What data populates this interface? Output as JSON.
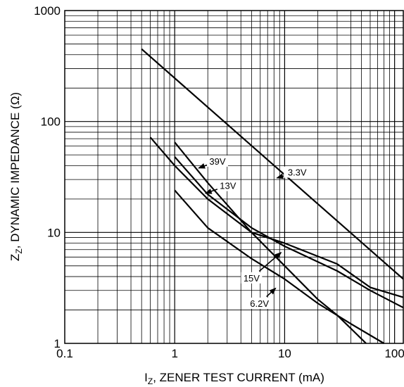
{
  "chart_data": {
    "type": "line",
    "title": "",
    "x_scale": "log",
    "y_scale": "log",
    "xlim": [
      0.1,
      120
    ],
    "ylim": [
      1,
      1000
    ],
    "grid": true,
    "xlabel_main": "I",
    "xlabel_sub": "Z",
    "xlabel_rest": ", ZENER TEST CURRENT (mA)",
    "ylabel_main": "Z",
    "ylabel_sub": "Z",
    "ylabel_rest": ", DYNAMIC IMPEDANCE (Ω)",
    "x_ticks": [
      {
        "value": 0.1,
        "label": "0.1"
      },
      {
        "value": 1,
        "label": "1"
      },
      {
        "value": 10,
        "label": "10"
      },
      {
        "value": 100,
        "label": "100"
      }
    ],
    "y_ticks": [
      {
        "value": 1,
        "label": "1"
      },
      {
        "value": 10,
        "label": "10"
      },
      {
        "value": 100,
        "label": "100"
      },
      {
        "value": 1000,
        "label": "1000"
      }
    ],
    "series": [
      {
        "name": "3.3V",
        "x": [
          0.5,
          120
        ],
        "y": [
          450,
          3.8
        ]
      },
      {
        "name": "39V",
        "x": [
          1,
          2,
          5,
          10,
          20,
          30,
          55
        ],
        "y": [
          65,
          28,
          10,
          5,
          2.5,
          1.8,
          1.0
        ]
      },
      {
        "name": "13V",
        "x": [
          1,
          2,
          5,
          10,
          30,
          60,
          120
        ],
        "y": [
          48,
          22,
          11,
          7.5,
          4.5,
          3.0,
          2.1
        ]
      },
      {
        "name": "15V",
        "x": [
          0.6,
          1,
          2,
          5,
          10,
          30,
          60,
          120
        ],
        "y": [
          72,
          40,
          20,
          10,
          8,
          5.2,
          3.2,
          2.6
        ]
      },
      {
        "name": "6.2V",
        "x": [
          1,
          2,
          5,
          10,
          20,
          40,
          80
        ],
        "y": [
          24,
          11,
          5.8,
          3.8,
          2.3,
          1.5,
          1.0
        ]
      }
    ],
    "annotations": [
      {
        "text": "3.3V",
        "series": "3.3V",
        "text_x": 13,
        "text_y": 35,
        "arrow_x": 8.5,
        "arrow_y": 31
      },
      {
        "text": "39V",
        "series": "39V",
        "text_x": 2.45,
        "text_y": 44,
        "arrow_x": 1.65,
        "arrow_y": 38
      },
      {
        "text": "13V",
        "series": "13V",
        "text_x": 3.05,
        "text_y": 26.5,
        "arrow_x": 1.9,
        "arrow_y": 22.5
      },
      {
        "text": "15V",
        "series": "15V",
        "text_x": 5.0,
        "text_y": 3.9,
        "arrow_x": 9.3,
        "arrow_y": 6.6
      },
      {
        "text": "6.2V",
        "series": "6.2V",
        "text_x": 5.9,
        "text_y": 2.3,
        "arrow_x": 8.3,
        "arrow_y": 3.15
      }
    ]
  }
}
